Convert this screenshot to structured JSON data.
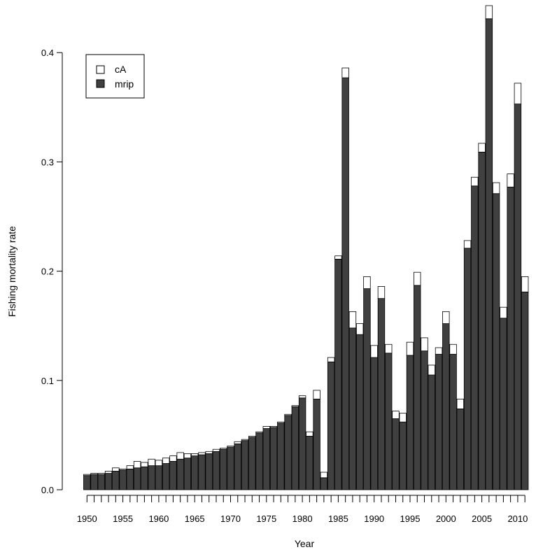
{
  "chart_data": {
    "type": "bar",
    "stacked": true,
    "title": "",
    "xlabel": "Year",
    "ylabel": "Fishing mortality rate",
    "ylim": [
      0,
      0.44
    ],
    "yticks": [
      "0.0",
      "0.1",
      "0.2",
      "0.3",
      "0.4"
    ],
    "ytick_values": [
      0.0,
      0.1,
      0.2,
      0.3,
      0.4
    ],
    "xtick_labels": [
      "1950",
      "1955",
      "1960",
      "1965",
      "1970",
      "1975",
      "1980",
      "1985",
      "1990",
      "1995",
      "2000",
      "2005",
      "2010"
    ],
    "xtick_years": [
      1950,
      1955,
      1960,
      1965,
      1970,
      1975,
      1980,
      1985,
      1990,
      1995,
      2000,
      2005,
      2010
    ],
    "grid": false,
    "legend_position": "top-left",
    "categories": [
      1950,
      1951,
      1952,
      1953,
      1954,
      1955,
      1956,
      1957,
      1958,
      1959,
      1960,
      1961,
      1962,
      1963,
      1964,
      1965,
      1966,
      1967,
      1968,
      1969,
      1970,
      1971,
      1972,
      1973,
      1974,
      1975,
      1976,
      1977,
      1978,
      1979,
      1980,
      1981,
      1982,
      1983,
      1984,
      1985,
      1986,
      1987,
      1988,
      1989,
      1990,
      1991,
      1992,
      1993,
      1994,
      1995,
      1996,
      1997,
      1998,
      1999,
      2000,
      2001,
      2002,
      2003,
      2004,
      2005,
      2006,
      2007,
      2008,
      2009,
      2010,
      2011
    ],
    "series": [
      {
        "name": "mrip",
        "color": "#404040",
        "values": [
          0.013,
          0.014,
          0.014,
          0.015,
          0.017,
          0.018,
          0.019,
          0.02,
          0.021,
          0.022,
          0.022,
          0.024,
          0.026,
          0.028,
          0.029,
          0.031,
          0.032,
          0.033,
          0.035,
          0.037,
          0.039,
          0.042,
          0.045,
          0.048,
          0.052,
          0.056,
          0.057,
          0.061,
          0.068,
          0.076,
          0.084,
          0.049,
          0.083,
          0.011,
          0.117,
          0.211,
          0.377,
          0.148,
          0.142,
          0.184,
          0.121,
          0.175,
          0.125,
          0.065,
          0.062,
          0.123,
          0.187,
          0.127,
          0.105,
          0.124,
          0.152,
          0.124,
          0.074,
          0.221,
          0.278,
          0.309,
          0.431,
          0.271,
          0.157,
          0.277,
          0.353,
          0.181
        ]
      },
      {
        "name": "cA",
        "color": "#ffffff",
        "values": [
          0.001,
          0.001,
          0.001,
          0.002,
          0.003,
          0.001,
          0.003,
          0.006,
          0.004,
          0.006,
          0.005,
          0.005,
          0.005,
          0.006,
          0.004,
          0.002,
          0.002,
          0.002,
          0.002,
          0.001,
          0.001,
          0.002,
          0.001,
          0.001,
          0.001,
          0.002,
          0.001,
          0.001,
          0.001,
          0.001,
          0.002,
          0.004,
          0.008,
          0.005,
          0.004,
          0.003,
          0.009,
          0.015,
          0.01,
          0.011,
          0.011,
          0.011,
          0.008,
          0.007,
          0.008,
          0.012,
          0.012,
          0.012,
          0.009,
          0.006,
          0.011,
          0.009,
          0.009,
          0.007,
          0.008,
          0.008,
          0.012,
          0.01,
          0.01,
          0.012,
          0.019,
          0.014
        ]
      }
    ]
  }
}
